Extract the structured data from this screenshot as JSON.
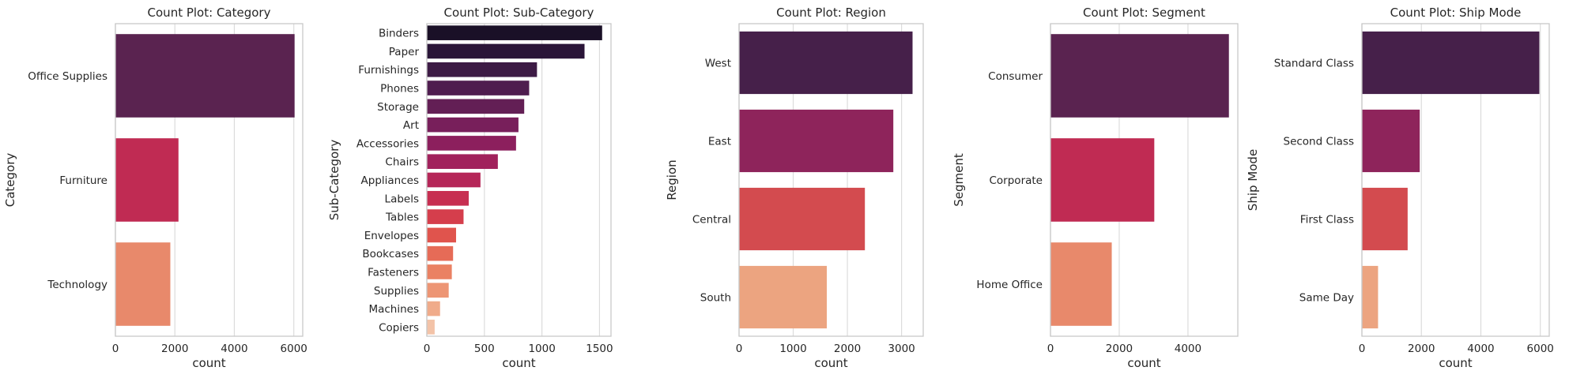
{
  "charts": [
    {
      "title": "Count Plot: Category",
      "type": "bar",
      "orientation": "horizontal",
      "xlabel": "count",
      "ylabel": "Category",
      "xlim": [
        0,
        6300
      ],
      "xticks": [
        0,
        2000,
        4000,
        6000
      ],
      "categories": [
        "Office Supplies",
        "Furniture",
        "Technology"
      ],
      "values": [
        6026,
        2121,
        1847
      ],
      "colors": [
        "#5a2350",
        "#c02b53",
        "#e8896b"
      ]
    },
    {
      "title": "Count Plot: Sub-Category",
      "type": "bar",
      "orientation": "horizontal",
      "xlabel": "count",
      "ylabel": "Sub-Category",
      "xlim": [
        0,
        1600
      ],
      "xticks": [
        0,
        500,
        1000,
        1500
      ],
      "categories": [
        "Binders",
        "Paper",
        "Furnishings",
        "Phones",
        "Storage",
        "Art",
        "Accessories",
        "Chairs",
        "Appliances",
        "Labels",
        "Tables",
        "Envelopes",
        "Bookcases",
        "Fasteners",
        "Supplies",
        "Machines",
        "Copiers"
      ],
      "values": [
        1523,
        1370,
        957,
        889,
        846,
        796,
        775,
        617,
        466,
        364,
        319,
        254,
        228,
        217,
        190,
        115,
        68
      ],
      "colors": [
        "#1a1027",
        "#2a1538",
        "#3d1b45",
        "#4f1d4f",
        "#631f55",
        "#781f5b",
        "#8c1f5d",
        "#a1215c",
        "#b52658",
        "#c72f51",
        "#d53e4c",
        "#e0544d",
        "#e66b57",
        "#ea8163",
        "#ed9574",
        "#f0ab8a",
        "#f3c3a8"
      ]
    },
    {
      "title": "Count Plot: Region",
      "type": "bar",
      "orientation": "horizontal",
      "xlabel": "count",
      "ylabel": "Region",
      "xlim": [
        0,
        3400
      ],
      "xticks": [
        0,
        1000,
        2000,
        3000
      ],
      "categories": [
        "West",
        "East",
        "Central",
        "South"
      ],
      "values": [
        3203,
        2848,
        2323,
        1620
      ],
      "colors": [
        "#46204a",
        "#8e245b",
        "#d34b4f",
        "#eca480"
      ]
    },
    {
      "title": "Count Plot: Segment",
      "type": "bar",
      "orientation": "horizontal",
      "xlabel": "count",
      "ylabel": "Segment",
      "xlim": [
        0,
        5450
      ],
      "xticks": [
        0,
        2000,
        4000
      ],
      "categories": [
        "Consumer",
        "Corporate",
        "Home Office"
      ],
      "values": [
        5191,
        3020,
        1783
      ],
      "colors": [
        "#5a2350",
        "#c02b53",
        "#e8896b"
      ]
    },
    {
      "title": "Count Plot: Ship Mode",
      "type": "bar",
      "orientation": "horizontal",
      "xlabel": "count",
      "ylabel": "Ship Mode",
      "xlim": [
        0,
        6300
      ],
      "xticks": [
        0,
        2000,
        4000,
        6000
      ],
      "categories": [
        "Standard Class",
        "Second Class",
        "First Class",
        "Same Day"
      ],
      "values": [
        5968,
        1945,
        1538,
        543
      ],
      "colors": [
        "#46204a",
        "#8e245b",
        "#d34b4f",
        "#eca480"
      ]
    }
  ]
}
